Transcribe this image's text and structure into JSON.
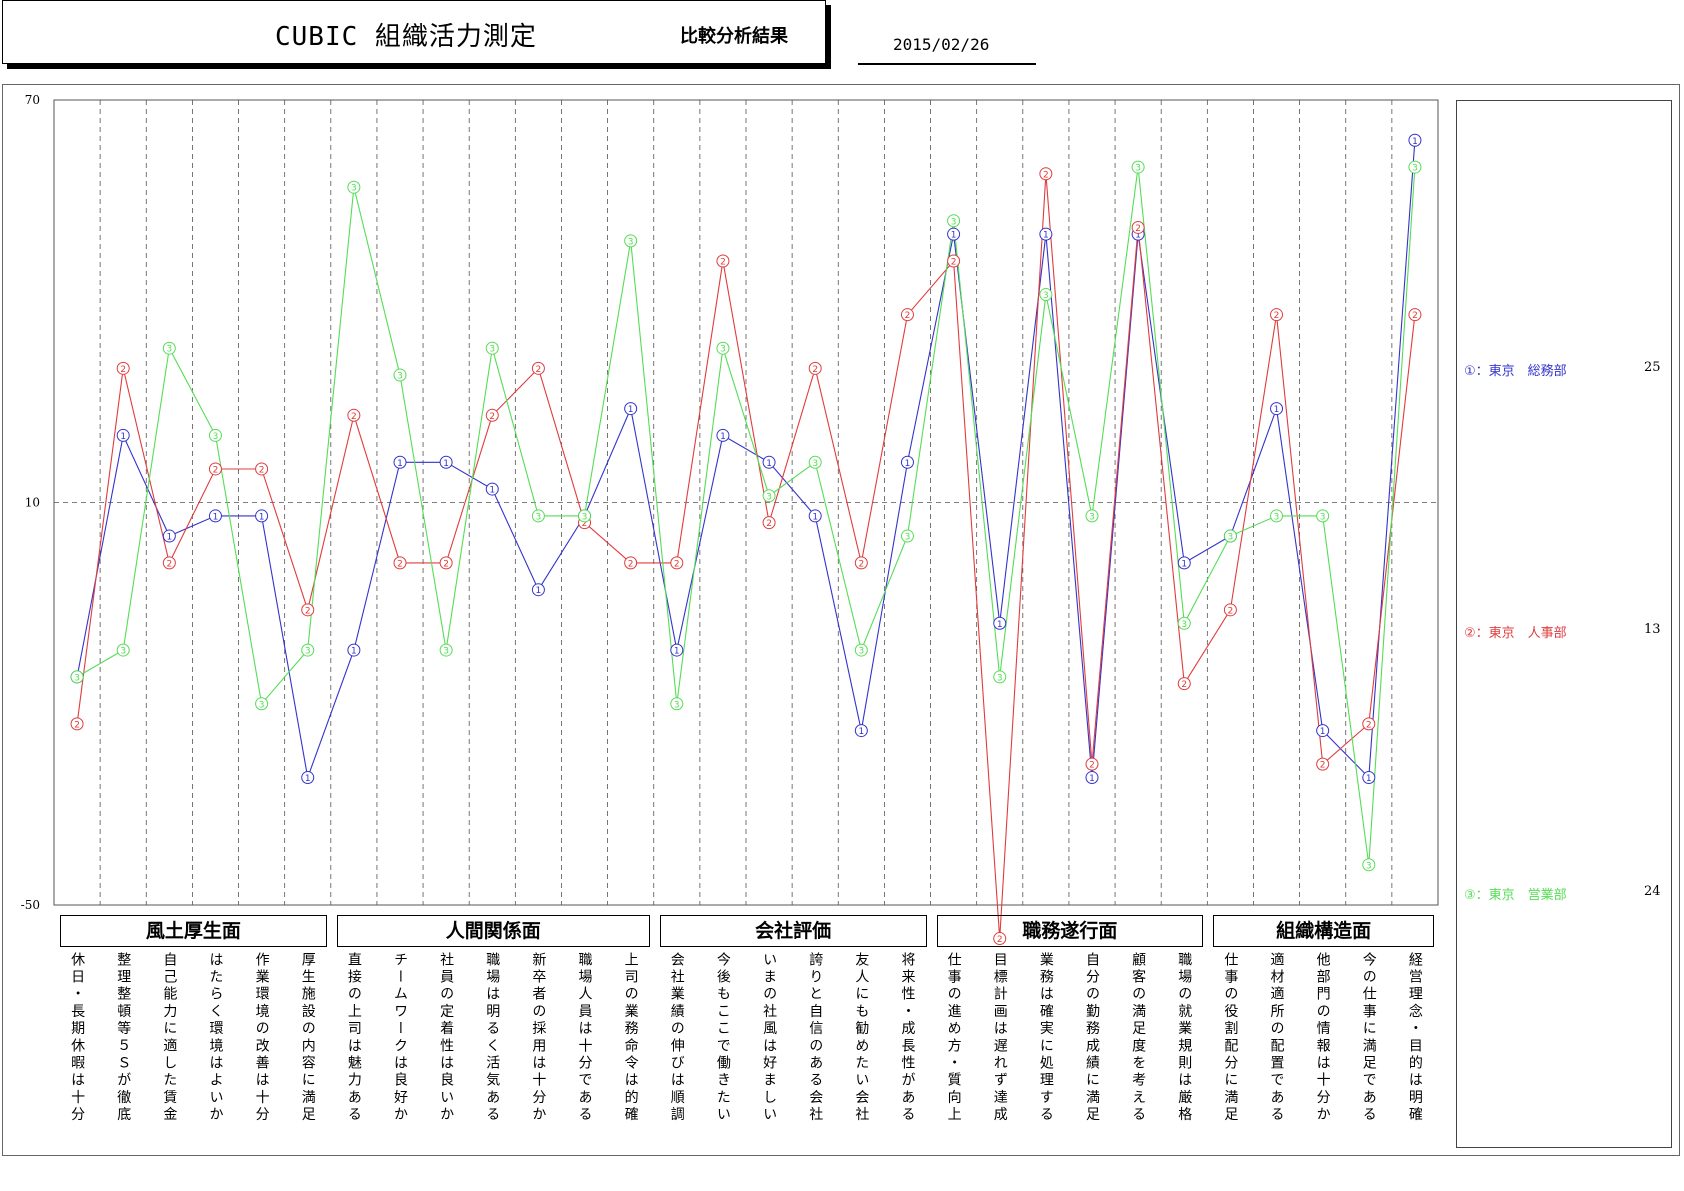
{
  "header": {
    "title": "CUBIC 組織活力測定",
    "subtitle": "比較分析結果",
    "date": "2015/02/26"
  },
  "chart_data": {
    "type": "line",
    "ylim": [
      -50,
      70
    ],
    "yticks": [
      "70",
      "10",
      "-50"
    ],
    "reference_line": 10,
    "grid": "vertical dashed",
    "legend_position": "right",
    "categories": [
      "休日・長期休暇は十分",
      "整理整頓等５Ｓが徹底",
      "自己能力に適した賃金",
      "はたらく環境はよいか",
      "作業環境の改善は十分",
      "厚生施設の内容に満足",
      "直接の上司は魅力ある",
      "チームワークは良好か",
      "社員の定着性は良いか",
      "職場は明るく活気ある",
      "新卒者の採用は十分か",
      "職場人員は十分である",
      "上司の業務命令は的確",
      "会社業績の伸びは順調",
      "今後もここで働きたい",
      "いまの社風は好ましい",
      "誇りと自信のある会社",
      "友人にも勧めたい会社",
      "将来性・成長性がある",
      "仕事の進め方・質向上",
      "目標計画は遅れず達成",
      "業務は確実に処理する",
      "自分の勤務成績に満足",
      "顧客の満足度を考える",
      "職場の就業規則は厳格",
      "仕事の役割配分に満足",
      "適材適所の配置である",
      "他部門の情報は十分か",
      "今の仕事に満足である",
      "経営理念・目的は明確"
    ],
    "groups": [
      {
        "label": "風土厚生面",
        "start": 0,
        "end": 5
      },
      {
        "label": "人間関係面",
        "start": 6,
        "end": 12
      },
      {
        "label": "会社評価",
        "start": 13,
        "end": 18
      },
      {
        "label": "職務遂行面",
        "start": 19,
        "end": 24
      },
      {
        "label": "組織構造面",
        "start": 25,
        "end": 29
      }
    ],
    "series": [
      {
        "marker": "1",
        "label": "①：東京　総務部",
        "count": "25",
        "color": "#3333cc",
        "values": [
          -16,
          20,
          5,
          8,
          8,
          -31,
          -12,
          16,
          16,
          12,
          -3,
          8,
          24,
          -12,
          20,
          16,
          8,
          -24,
          16,
          50,
          -8,
          50,
          -31,
          50,
          1,
          5,
          24,
          -24,
          -31,
          64
        ]
      },
      {
        "marker": "2",
        "label": "②：東京　人事部",
        "count": "13",
        "color": "#e03c3c",
        "values": [
          -23,
          30,
          1,
          15,
          15,
          -6,
          23,
          1,
          1,
          23,
          30,
          7,
          1,
          1,
          46,
          7,
          30,
          1,
          38,
          46,
          -55,
          59,
          -29,
          51,
          -17,
          -6,
          38,
          -29,
          -23,
          38
        ]
      },
      {
        "marker": "3",
        "label": "③：東京　営業部",
        "count": "24",
        "color": "#55dd55",
        "values": [
          -16,
          -12,
          33,
          20,
          -20,
          -12,
          57,
          29,
          -12,
          33,
          8,
          8,
          49,
          -20,
          33,
          11,
          16,
          -12,
          5,
          52,
          -16,
          41,
          8,
          60,
          -8,
          5,
          8,
          8,
          -44,
          60
        ]
      }
    ]
  }
}
